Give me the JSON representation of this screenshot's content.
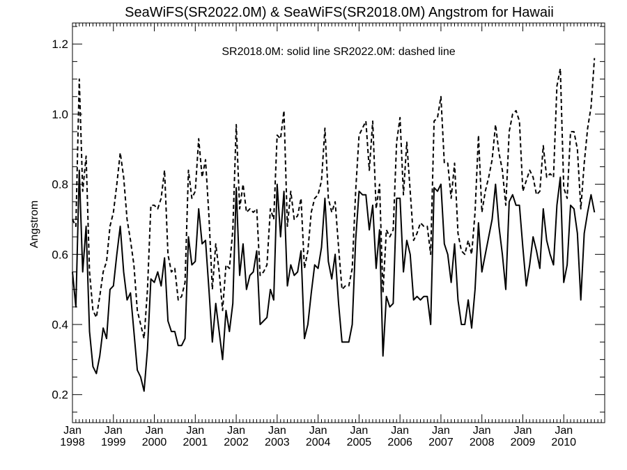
{
  "chart_data": {
    "type": "line",
    "title": "SeaWiFS(SR2022.0M) & SeaWiFS(SR2018.0M)  Angstrom for Hawaii",
    "annotation": "SR2018.0M: solid line   SR2022.0M: dashed line",
    "ylabel": "Angstrom",
    "xlabel": "",
    "ylim": [
      0.12,
      1.26
    ],
    "yticks": [
      0.2,
      0.4,
      0.6,
      0.8,
      1.0,
      1.2
    ],
    "ytick_labels": [
      "0.2",
      "0.4",
      "0.6",
      "0.8",
      "1.0",
      "1.2"
    ],
    "x_start_year": 1998,
    "x_end_year": 2011,
    "xtick_month_label": "Jan",
    "xtick_years": [
      "1998",
      "1999",
      "2000",
      "2001",
      "2002",
      "2003",
      "2004",
      "2005",
      "2006",
      "2007",
      "2008",
      "2009",
      "2010"
    ],
    "legend": "none",
    "grid": false,
    "series": [
      {
        "name": "SR2018.0M",
        "style": "solid",
        "color": "#000000",
        "values": [
          0.55,
          0.45,
          0.84,
          0.55,
          0.68,
          0.38,
          0.28,
          0.26,
          0.31,
          0.39,
          0.36,
          0.5,
          0.51,
          0.6,
          0.68,
          0.55,
          0.47,
          0.49,
          0.38,
          0.27,
          0.25,
          0.21,
          0.33,
          0.53,
          0.52,
          0.55,
          0.51,
          0.59,
          0.41,
          0.38,
          0.38,
          0.34,
          0.34,
          0.36,
          0.65,
          0.57,
          0.58,
          0.73,
          0.63,
          0.64,
          0.5,
          0.35,
          0.46,
          0.38,
          0.3,
          0.44,
          0.38,
          0.46,
          0.79,
          0.54,
          0.63,
          0.5,
          0.54,
          0.55,
          0.61,
          0.4,
          0.41,
          0.42,
          0.5,
          0.47,
          0.8,
          0.65,
          0.78,
          0.51,
          0.57,
          0.54,
          0.55,
          0.61,
          0.36,
          0.4,
          0.49,
          0.57,
          0.56,
          0.62,
          0.76,
          0.58,
          0.53,
          0.6,
          0.46,
          0.35,
          0.35,
          0.35,
          0.4,
          0.64,
          0.78,
          0.77,
          0.77,
          0.67,
          0.74,
          0.56,
          0.67,
          0.31,
          0.48,
          0.45,
          0.46,
          0.76,
          0.76,
          0.55,
          0.64,
          0.6,
          0.47,
          0.48,
          0.47,
          0.48,
          0.48,
          0.4,
          0.79,
          0.78,
          0.8,
          0.63,
          0.6,
          0.52,
          0.63,
          0.47,
          0.4,
          0.4,
          0.47,
          0.39,
          0.5,
          0.69,
          0.55,
          0.6,
          0.65,
          0.7,
          0.8,
          0.68,
          0.6,
          0.5,
          0.75,
          0.77,
          0.74,
          0.74,
          0.62,
          0.51,
          0.57,
          0.65,
          0.61,
          0.56,
          0.73,
          0.64,
          0.6,
          0.57,
          0.74,
          0.82,
          0.52,
          0.57,
          0.74,
          0.73,
          0.66,
          0.47,
          0.66,
          0.72,
          0.77,
          0.72
        ]
      },
      {
        "name": "SR2022.0M",
        "style": "dashed",
        "color": "#000000",
        "values": [
          0.7,
          0.68,
          1.1,
          0.78,
          0.88,
          0.55,
          0.44,
          0.42,
          0.48,
          0.55,
          0.58,
          0.68,
          0.72,
          0.8,
          0.89,
          0.82,
          0.7,
          0.64,
          0.57,
          0.44,
          0.4,
          0.36,
          0.5,
          0.74,
          0.74,
          0.73,
          0.76,
          0.84,
          0.6,
          0.55,
          0.56,
          0.47,
          0.48,
          0.52,
          0.84,
          0.76,
          0.78,
          0.93,
          0.82,
          0.87,
          0.71,
          0.5,
          0.63,
          0.55,
          0.44,
          0.57,
          0.56,
          0.67,
          0.97,
          0.73,
          0.8,
          0.72,
          0.73,
          0.72,
          0.73,
          0.54,
          0.55,
          0.57,
          0.73,
          0.7,
          0.94,
          0.93,
          1.01,
          0.68,
          0.78,
          0.7,
          0.71,
          0.76,
          0.56,
          0.61,
          0.72,
          0.76,
          0.77,
          0.81,
          0.96,
          0.76,
          0.72,
          0.75,
          0.62,
          0.5,
          0.51,
          0.51,
          0.56,
          0.78,
          0.94,
          0.96,
          0.98,
          0.84,
          0.98,
          0.73,
          0.8,
          0.49,
          0.67,
          0.65,
          0.67,
          0.92,
          0.99,
          0.77,
          0.92,
          0.78,
          0.64,
          0.66,
          0.69,
          0.68,
          0.68,
          0.6,
          0.98,
          0.99,
          1.05,
          0.86,
          0.86,
          0.76,
          0.86,
          0.66,
          0.61,
          0.6,
          0.64,
          0.6,
          0.72,
          0.94,
          0.72,
          0.78,
          0.82,
          0.87,
          0.97,
          0.89,
          0.84,
          0.74,
          0.95,
          1.0,
          1.01,
          0.98,
          0.78,
          0.81,
          0.84,
          0.82,
          0.77,
          0.78,
          0.91,
          0.82,
          0.83,
          0.82,
          1.08,
          1.13,
          0.79,
          0.76,
          0.95,
          0.95,
          0.9,
          0.73,
          0.86,
          0.96,
          1.02,
          1.16
        ]
      }
    ]
  }
}
